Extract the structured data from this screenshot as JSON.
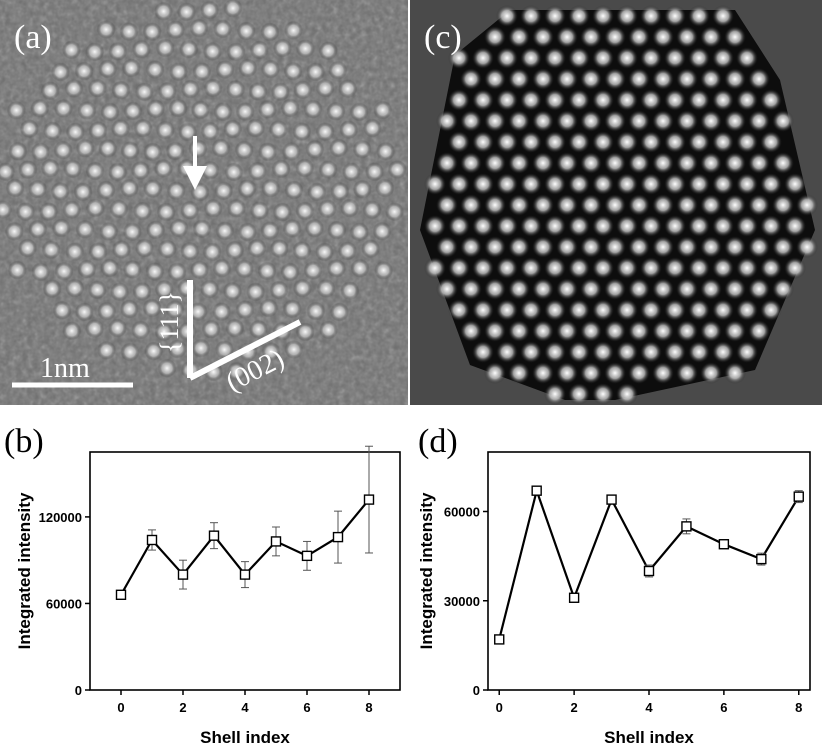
{
  "panels": {
    "a": {
      "label": "(a)",
      "scale_bar": "1nm",
      "direction_111": "{111}",
      "direction_002": "(002)"
    },
    "c": {
      "label": "(c)"
    }
  },
  "chart_data": [
    {
      "panel": "(b)",
      "type": "line",
      "xlabel": "Shell index",
      "ylabel": "Integrated intensity",
      "xlim": [
        -1,
        9
      ],
      "ylim": [
        0,
        165000
      ],
      "xticks": [
        0,
        2,
        4,
        6,
        8
      ],
      "yticks": [
        0,
        60000,
        120000
      ],
      "marker": "open-square",
      "series": [
        {
          "x": [
            0,
            1,
            2,
            3,
            4,
            5,
            6,
            7,
            8
          ],
          "y": [
            66000,
            104000,
            80000,
            107000,
            80000,
            103000,
            93000,
            106000,
            132000
          ],
          "error": [
            0,
            7000,
            10000,
            9000,
            9000,
            10000,
            10000,
            18000,
            37000
          ]
        }
      ]
    },
    {
      "panel": "(d)",
      "type": "line",
      "xlabel": "Shell index",
      "ylabel": "Integrated intensity",
      "xlim": [
        -0.3,
        8.3
      ],
      "ylim": [
        0,
        80000
      ],
      "xticks": [
        0,
        2,
        4,
        6,
        8
      ],
      "yticks": [
        0,
        30000,
        60000
      ],
      "marker": "open-square",
      "series": [
        {
          "x": [
            0,
            1,
            2,
            3,
            4,
            5,
            6,
            7,
            8
          ],
          "y": [
            17000,
            67000,
            31000,
            64000,
            40000,
            55000,
            49000,
            44000,
            65000
          ],
          "error": [
            0,
            1000,
            1000,
            1000,
            2000,
            2500,
            1500,
            2000,
            2000
          ]
        }
      ]
    }
  ]
}
